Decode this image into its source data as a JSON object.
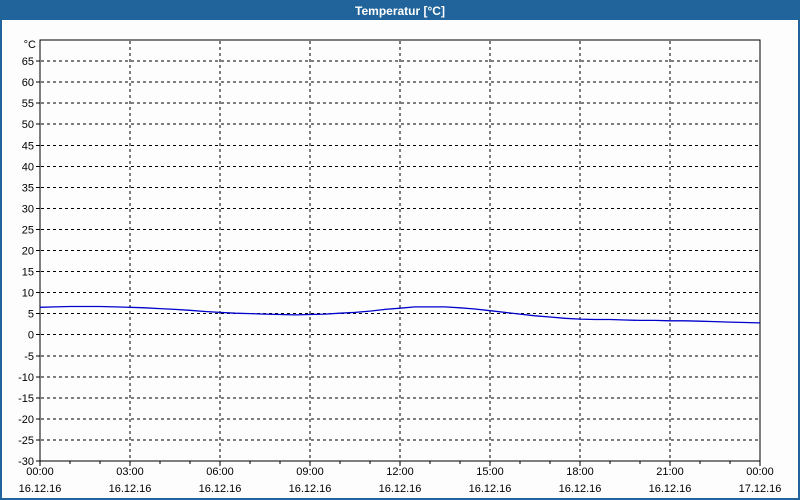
{
  "window": {
    "title": "Temperatur [°C]"
  },
  "colors": {
    "titlebar_bg": "#20649b",
    "titlebar_text": "#ffffff",
    "window_border": "#20649b",
    "plot_border": "#000000",
    "grid": "#000000",
    "line": "#0000cc",
    "background": "#fcfdfc"
  },
  "chart_data": {
    "type": "line",
    "title": "Temperatur [°C]",
    "unit_label": "°C",
    "grid": "dashed",
    "legend": "none",
    "xlim_hours": [
      0,
      24
    ],
    "ylim": [
      -30,
      70
    ],
    "y_ticks": [
      65,
      60,
      55,
      50,
      45,
      40,
      35,
      30,
      25,
      20,
      15,
      10,
      5,
      0,
      -5,
      -10,
      -15,
      -20,
      -25,
      -30
    ],
    "x_minor_tick_hours": 1,
    "x_ticks": [
      {
        "hour": 0,
        "time": "00:00",
        "date": "16.12.16"
      },
      {
        "hour": 3,
        "time": "03:00",
        "date": "16.12.16"
      },
      {
        "hour": 6,
        "time": "06:00",
        "date": "16.12.16"
      },
      {
        "hour": 9,
        "time": "09:00",
        "date": "16.12.16"
      },
      {
        "hour": 12,
        "time": "12:00",
        "date": "16.12.16"
      },
      {
        "hour": 15,
        "time": "15:00",
        "date": "16.12.16"
      },
      {
        "hour": 18,
        "time": "18:00",
        "date": "16.12.16"
      },
      {
        "hour": 21,
        "time": "21:00",
        "date": "16.12.16"
      },
      {
        "hour": 24,
        "time": "00:00",
        "date": "17.12.16"
      }
    ],
    "series": [
      {
        "name": "Temperatur",
        "color": "#0000cc",
        "x_hours": [
          0,
          0.5,
          1,
          1.5,
          2,
          2.5,
          3,
          3.5,
          4,
          4.5,
          5,
          5.5,
          6,
          6.5,
          7,
          7.5,
          8,
          8.5,
          9,
          9.5,
          10,
          10.5,
          11,
          11.5,
          12,
          12.5,
          13,
          13.5,
          14,
          14.5,
          15,
          15.5,
          16,
          16.5,
          17,
          17.5,
          18,
          18.5,
          19,
          19.5,
          20,
          20.5,
          21,
          21.5,
          22,
          22.5,
          23,
          23.5,
          24
        ],
        "values": [
          6.5,
          6.6,
          6.7,
          6.7,
          6.7,
          6.6,
          6.5,
          6.4,
          6.2,
          6.0,
          5.8,
          5.5,
          5.3,
          5.1,
          5.0,
          4.9,
          4.8,
          4.7,
          4.8,
          4.9,
          5.1,
          5.3,
          5.6,
          6.0,
          6.3,
          6.6,
          6.6,
          6.6,
          6.4,
          6.1,
          5.7,
          5.3,
          4.9,
          4.5,
          4.2,
          3.9,
          3.7,
          3.6,
          3.6,
          3.5,
          3.4,
          3.4,
          3.3,
          3.3,
          3.2,
          3.1,
          3.0,
          2.9,
          2.8
        ]
      }
    ]
  }
}
